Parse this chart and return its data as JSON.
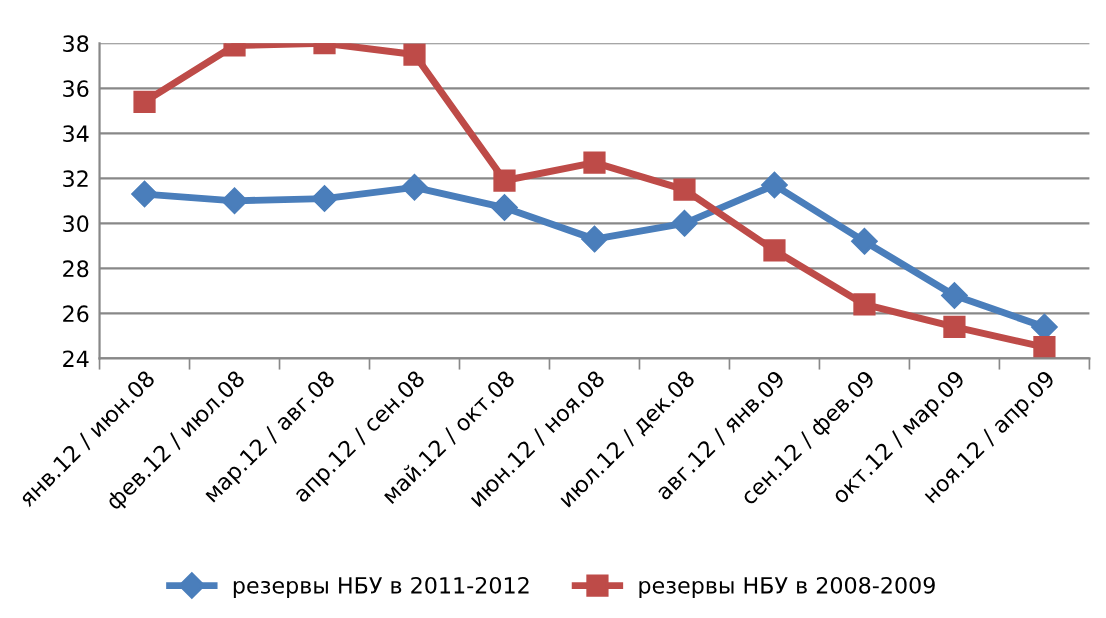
{
  "chart_data": {
    "type": "line",
    "categories": [
      "янв.12 / июн.08",
      "фев.12 / июл.08",
      "мар.12 / авг.08",
      "апр.12 / сен.08",
      "май.12 / окт.08",
      "июн.12 / ноя.08",
      "июл.12 / дек.08",
      "авг.12 / янв.09",
      "сен.12 / фев.09",
      "окт.12 / мар.09",
      "ноя.12 / апр.09"
    ],
    "series": [
      {
        "name": "резервы НБУ в 2011-2012",
        "color": "#4a7ebb",
        "marker": "diamond",
        "values": [
          31.3,
          31.0,
          31.1,
          31.6,
          30.7,
          29.3,
          30.0,
          31.7,
          29.2,
          26.8,
          25.4
        ]
      },
      {
        "name": "резервы НБУ в 2008-2009",
        "color": "#be4b48",
        "marker": "square",
        "values": [
          35.4,
          37.9,
          38.0,
          37.5,
          31.9,
          32.7,
          31.5,
          28.8,
          26.4,
          25.4,
          24.5
        ]
      }
    ],
    "ylim": [
      24,
      38
    ],
    "yticks": [
      24,
      26,
      28,
      30,
      32,
      34,
      36,
      38
    ],
    "grid": "y",
    "legend": "bottom",
    "line_style": "solid"
  }
}
